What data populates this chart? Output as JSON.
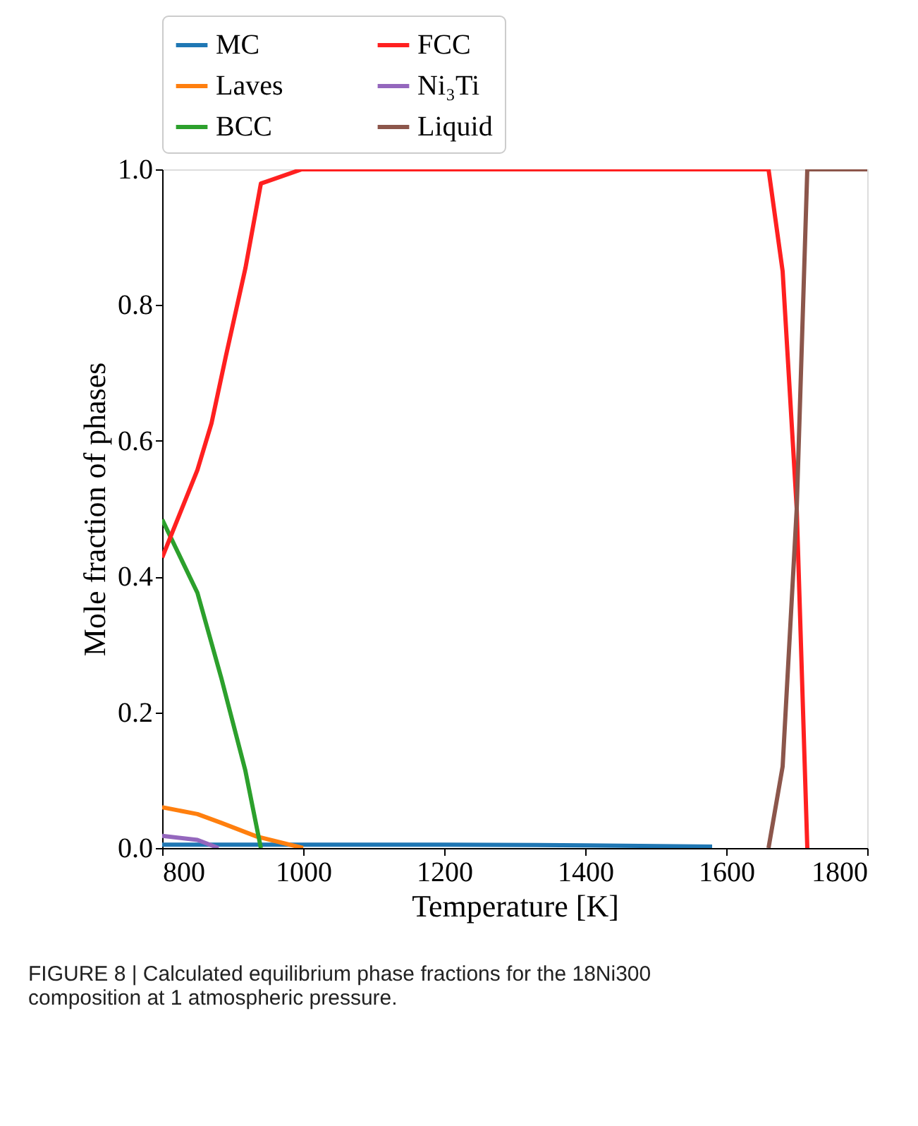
{
  "chart_data": {
    "type": "line",
    "xlabel": "Temperature [K]",
    "ylabel": "Mole fraction of phases",
    "xlim": [
      800,
      1800
    ],
    "xticks": [
      800,
      1000,
      1200,
      1400,
      1600,
      1800
    ],
    "ylim": [
      0,
      1.0
    ],
    "yticks": [
      {
        "value": 0,
        "label": "0.0"
      },
      0.2,
      0.4,
      0.6,
      0.8,
      {
        "value": 1,
        "label": "1.0"
      }
    ],
    "grid": false,
    "legend": "top",
    "marker": "none",
    "line_style": "solid",
    "annotations": [
      "FIGURE 8 | Calculated equilibrium phase fractions for the 18Ni300 composition at 1 atmospheric pressure."
    ],
    "series": [
      {
        "name": "MC",
        "color": "#1f77b4",
        "x": [
          800,
          1000,
          1200,
          1400,
          1580
        ],
        "values": [
          0.005,
          0.005,
          0.005,
          0.004,
          0.002
        ]
      },
      {
        "name": "Laves",
        "color": "#ff7f0e",
        "x": [
          800,
          850,
          884,
          934,
          1000
        ],
        "values": [
          0.06,
          0.05,
          0.037,
          0.017,
          0.0
        ]
      },
      {
        "name": "BCC",
        "color": "#2ca02c",
        "x": [
          800,
          850,
          884,
          918,
          940
        ],
        "values": [
          0.484,
          0.376,
          0.25,
          0.114,
          0.0
        ]
      },
      {
        "name": "FCC",
        "color": "#ff2020",
        "x": [
          800,
          850,
          870,
          890,
          918,
          940,
          998,
          1200,
          1400,
          1660,
          1680,
          1700,
          1715
        ],
        "values": [
          0.428,
          0.557,
          0.626,
          0.723,
          0.854,
          0.979,
          1.0,
          1.0,
          1.0,
          1.0,
          0.85,
          0.5,
          0.0
        ]
      },
      {
        "name": "Ni₃Ti",
        "color": "#9467bd",
        "x": [
          800,
          850,
          880
        ],
        "values": [
          0.018,
          0.012,
          0.0
        ]
      },
      {
        "name": "Liquid",
        "color": "#8c564b",
        "x": [
          1660,
          1680,
          1700,
          1715,
          1800
        ],
        "values": [
          0.0,
          0.12,
          0.5,
          1.0,
          1.0
        ]
      }
    ]
  }
}
